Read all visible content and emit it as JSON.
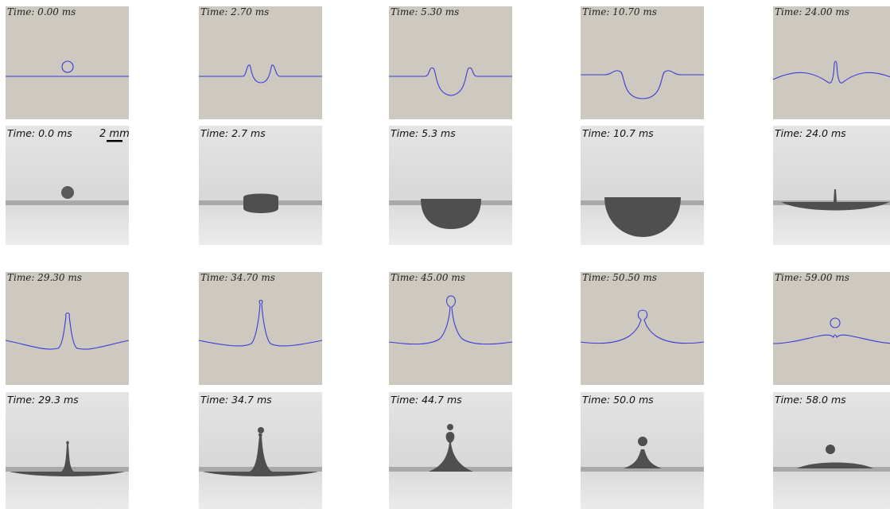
{
  "panels": [
    {
      "sim_label": "Time: 0.00 ms",
      "exp_label": "Time: 0.0 ms"
    },
    {
      "sim_label": "Time: 2.70 ms",
      "exp_label": "Time: 2.7 ms"
    },
    {
      "sim_label": "Time: 5.30 ms",
      "exp_label": "Time: 5.3 ms"
    },
    {
      "sim_label": "Time: 10.70 ms",
      "exp_label": "Time: 10.7 ms"
    },
    {
      "sim_label": "Time: 24.00 ms",
      "exp_label": "Time: 24.0 ms"
    },
    {
      "sim_label": "Time: 29.30 ms",
      "exp_label": "Time: 29.3 ms"
    },
    {
      "sim_label": "Time: 34.70 ms",
      "exp_label": "Time: 34.7 ms"
    },
    {
      "sim_label": "Time: 45.00 ms",
      "exp_label": "Time: 44.7 ms"
    },
    {
      "sim_label": "Time: 50.50 ms",
      "exp_label": "Time: 50.0 ms"
    },
    {
      "sim_label": "Time: 59.00 ms",
      "exp_label": "Time: 58.0 ms"
    }
  ],
  "scale_bar": "2 mm"
}
